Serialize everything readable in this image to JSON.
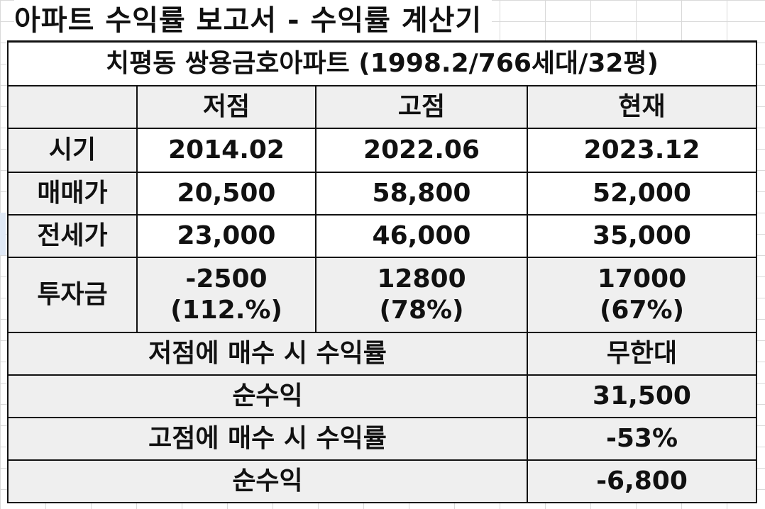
{
  "title": "아파트 수익률 보고서 - 수익률 계산기",
  "subtitle": "치평동 쌍용금호아파트 (1998.2/766세대/32평)",
  "columns": [
    "저점",
    "고점",
    "현재"
  ],
  "rows": [
    {
      "label": "시기",
      "values": [
        "2014.02",
        "2022.06",
        "2023.12"
      ]
    },
    {
      "label": "매매가",
      "values": [
        "20,500",
        "58,800",
        "52,000"
      ]
    },
    {
      "label": "전세가",
      "values": [
        "23,000",
        "46,000",
        "35,000"
      ]
    }
  ],
  "investment": {
    "label": "투자금",
    "values": [
      {
        "amount": "-2500",
        "ratio": "(112.%)"
      },
      {
        "amount": "12800",
        "ratio": "(78%)"
      },
      {
        "amount": "17000",
        "ratio": "(67%)"
      }
    ]
  },
  "summary": [
    {
      "label": "저점에 매수 시 수익률",
      "value": "무한대"
    },
    {
      "label": "순수익",
      "value": "31,500"
    },
    {
      "label": "고점에 매수 시 수익률",
      "value": "-53%"
    },
    {
      "label": "순수익",
      "value": "-6,800"
    }
  ],
  "colors": {
    "accent_blue": "#1f6fb8",
    "gray_fill": "#efefef",
    "border": "#111111"
  }
}
